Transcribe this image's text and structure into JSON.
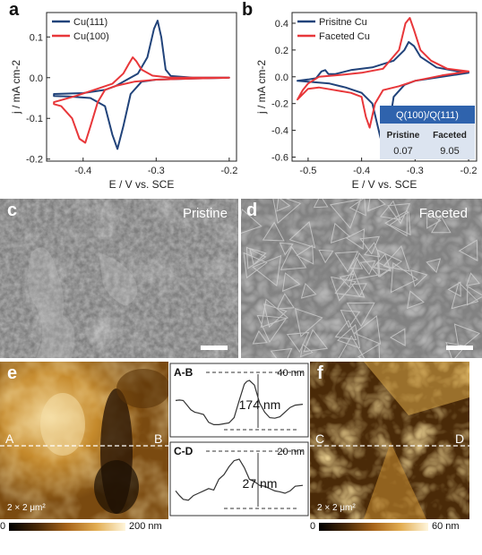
{
  "panels": {
    "a": "a",
    "b": "b",
    "c": "c",
    "d": "d",
    "e": "e",
    "f": "f"
  },
  "colors": {
    "blue": "#21437a",
    "red": "#e8373a",
    "table_header": "#2f63ad",
    "table_body": "#dce4f0"
  },
  "chart_data": [
    {
      "id": "a",
      "type": "line",
      "xlabel": "E / V vs. SCE",
      "ylabel": "j / mA cm-2",
      "xlim": [
        -0.45,
        -0.19
      ],
      "ylim": [
        -0.205,
        0.16
      ],
      "xticks": [
        -0.4,
        -0.3,
        -0.2
      ],
      "xtick_labels": [
        "-0.4",
        "-0.3",
        "-0.2"
      ],
      "yticks": [
        -0.2,
        -0.1,
        0.0,
        0.1
      ],
      "ytick_labels": [
        "-0.2",
        "-0.1",
        "0.0",
        "0.1"
      ],
      "legend_position": "top-left",
      "series": [
        {
          "name": "Cu(111)",
          "color": "#21437a",
          "points": [
            [
              -0.44,
              -0.04
            ],
            [
              -0.4,
              -0.038
            ],
            [
              -0.37,
              -0.03
            ],
            [
              -0.355,
              -0.02
            ],
            [
              -0.34,
              -0.005
            ],
            [
              -0.325,
              0.01
            ],
            [
              -0.312,
              0.05
            ],
            [
              -0.303,
              0.12
            ],
            [
              -0.298,
              0.14
            ],
            [
              -0.293,
              0.1
            ],
            [
              -0.287,
              0.02
            ],
            [
              -0.28,
              0.004
            ],
            [
              -0.25,
              0.0
            ],
            [
              -0.2,
              0.0
            ],
            [
              -0.2,
              0.0
            ],
            [
              -0.25,
              -0.002
            ],
            [
              -0.3,
              -0.005
            ],
            [
              -0.32,
              -0.01
            ],
            [
              -0.335,
              -0.04
            ],
            [
              -0.345,
              -0.12
            ],
            [
              -0.353,
              -0.175
            ],
            [
              -0.36,
              -0.14
            ],
            [
              -0.37,
              -0.07
            ],
            [
              -0.39,
              -0.05
            ],
            [
              -0.42,
              -0.046
            ],
            [
              -0.44,
              -0.045
            ]
          ]
        },
        {
          "name": "Cu(100)",
          "color": "#e8373a",
          "points": [
            [
              -0.44,
              -0.06
            ],
            [
              -0.43,
              -0.055
            ],
            [
              -0.41,
              -0.045
            ],
            [
              -0.385,
              -0.03
            ],
            [
              -0.36,
              -0.015
            ],
            [
              -0.345,
              0.01
            ],
            [
              -0.337,
              0.035
            ],
            [
              -0.332,
              0.05
            ],
            [
              -0.327,
              0.04
            ],
            [
              -0.32,
              0.02
            ],
            [
              -0.305,
              0.005
            ],
            [
              -0.28,
              0.0
            ],
            [
              -0.25,
              0.0
            ],
            [
              -0.2,
              0.0
            ],
            [
              -0.2,
              0.0
            ],
            [
              -0.25,
              -0.002
            ],
            [
              -0.3,
              -0.005
            ],
            [
              -0.33,
              -0.01
            ],
            [
              -0.355,
              -0.02
            ],
            [
              -0.37,
              -0.03
            ],
            [
              -0.38,
              -0.06
            ],
            [
              -0.39,
              -0.12
            ],
            [
              -0.397,
              -0.16
            ],
            [
              -0.405,
              -0.15
            ],
            [
              -0.415,
              -0.1
            ],
            [
              -0.43,
              -0.07
            ],
            [
              -0.44,
              -0.065
            ]
          ]
        }
      ]
    },
    {
      "id": "b",
      "type": "line",
      "xlabel": "E / V vs. SCE",
      "ylabel": "j / mA cm-2",
      "xlim": [
        -0.53,
        -0.185
      ],
      "ylim": [
        -0.63,
        0.48
      ],
      "xticks": [
        -0.5,
        -0.4,
        -0.3,
        -0.2
      ],
      "xtick_labels": [
        "-0.5",
        "-0.4",
        "-0.3",
        "-0.2"
      ],
      "yticks": [
        -0.6,
        -0.4,
        -0.2,
        0.0,
        0.2,
        0.4
      ],
      "ytick_labels": [
        "-0.6",
        "-0.4",
        "-0.2",
        "0.0",
        "0.2",
        "0.4"
      ],
      "legend_position": "top-left",
      "series": [
        {
          "name": "Prisitne Cu",
          "color": "#21437a",
          "points": [
            [
              -0.52,
              -0.03
            ],
            [
              -0.5,
              -0.02
            ],
            [
              -0.485,
              -0.01
            ],
            [
              -0.475,
              0.04
            ],
            [
              -0.468,
              0.05
            ],
            [
              -0.462,
              0.02
            ],
            [
              -0.45,
              0.02
            ],
            [
              -0.42,
              0.05
            ],
            [
              -0.38,
              0.07
            ],
            [
              -0.34,
              0.12
            ],
            [
              -0.32,
              0.2
            ],
            [
              -0.312,
              0.26
            ],
            [
              -0.302,
              0.23
            ],
            [
              -0.29,
              0.15
            ],
            [
              -0.26,
              0.07
            ],
            [
              -0.22,
              0.04
            ],
            [
              -0.2,
              0.03
            ],
            [
              -0.2,
              0.03
            ],
            [
              -0.25,
              0.0
            ],
            [
              -0.3,
              -0.03
            ],
            [
              -0.32,
              -0.06
            ],
            [
              -0.34,
              -0.15
            ],
            [
              -0.35,
              -0.4
            ],
            [
              -0.358,
              -0.56
            ],
            [
              -0.365,
              -0.45
            ],
            [
              -0.38,
              -0.2
            ],
            [
              -0.4,
              -0.12
            ],
            [
              -0.43,
              -0.08
            ],
            [
              -0.46,
              -0.05
            ],
            [
              -0.49,
              -0.04
            ],
            [
              -0.52,
              -0.03
            ]
          ]
        },
        {
          "name": "Faceted Cu",
          "color": "#e8373a",
          "points": [
            [
              -0.52,
              -0.17
            ],
            [
              -0.51,
              -0.1
            ],
            [
              -0.5,
              -0.05
            ],
            [
              -0.48,
              0.0
            ],
            [
              -0.45,
              0.01
            ],
            [
              -0.4,
              0.03
            ],
            [
              -0.36,
              0.06
            ],
            [
              -0.33,
              0.2
            ],
            [
              -0.318,
              0.4
            ],
            [
              -0.31,
              0.44
            ],
            [
              -0.302,
              0.35
            ],
            [
              -0.29,
              0.2
            ],
            [
              -0.27,
              0.12
            ],
            [
              -0.24,
              0.06
            ],
            [
              -0.2,
              0.04
            ],
            [
              -0.2,
              0.04
            ],
            [
              -0.25,
              0.01
            ],
            [
              -0.3,
              -0.03
            ],
            [
              -0.33,
              -0.07
            ],
            [
              -0.36,
              -0.1
            ],
            [
              -0.375,
              -0.2
            ],
            [
              -0.385,
              -0.38
            ],
            [
              -0.392,
              -0.3
            ],
            [
              -0.4,
              -0.15
            ],
            [
              -0.42,
              -0.12
            ],
            [
              -0.45,
              -0.1
            ],
            [
              -0.48,
              -0.08
            ],
            [
              -0.5,
              -0.09
            ],
            [
              -0.52,
              -0.17
            ]
          ]
        }
      ],
      "table": {
        "header": "Q(100)/Q(111)",
        "columns": [
          "Pristine",
          "Faceted"
        ],
        "values": [
          "0.07",
          "9.05"
        ]
      }
    },
    {
      "id": "profile-AB",
      "type": "line",
      "title": "A-B",
      "annotation": "174 nm",
      "scale_label": "40 nm",
      "series": [
        {
          "name": "",
          "color": "#333333",
          "points": [
            [
              0,
              0.55
            ],
            [
              0.03,
              0.56
            ],
            [
              0.06,
              0.55
            ],
            [
              0.09,
              0.45
            ],
            [
              0.12,
              0.35
            ],
            [
              0.15,
              0.3
            ],
            [
              0.18,
              0.28
            ],
            [
              0.22,
              0.25
            ],
            [
              0.26,
              0.08
            ],
            [
              0.3,
              0.03
            ],
            [
              0.34,
              0.03
            ],
            [
              0.38,
              0.05
            ],
            [
              0.42,
              0.07
            ],
            [
              0.46,
              0.18
            ],
            [
              0.5,
              0.55
            ],
            [
              0.54,
              0.9
            ],
            [
              0.56,
              0.96
            ],
            [
              0.58,
              0.98
            ],
            [
              0.62,
              0.88
            ],
            [
              0.66,
              0.5
            ],
            [
              0.7,
              0.3
            ],
            [
              0.74,
              0.18
            ],
            [
              0.78,
              0.17
            ],
            [
              0.82,
              0.2
            ],
            [
              0.86,
              0.3
            ],
            [
              0.9,
              0.4
            ],
            [
              0.94,
              0.45
            ],
            [
              1.0,
              0.47
            ]
          ]
        }
      ]
    },
    {
      "id": "profile-CD",
      "type": "line",
      "title": "C-D",
      "annotation": "27 nm",
      "scale_label": "20 nm",
      "series": [
        {
          "name": "",
          "color": "#333333",
          "points": [
            [
              0,
              0.3
            ],
            [
              0.03,
              0.2
            ],
            [
              0.06,
              0.12
            ],
            [
              0.1,
              0.1
            ],
            [
              0.14,
              0.2
            ],
            [
              0.18,
              0.25
            ],
            [
              0.22,
              0.3
            ],
            [
              0.26,
              0.35
            ],
            [
              0.3,
              0.32
            ],
            [
              0.34,
              0.55
            ],
            [
              0.38,
              0.65
            ],
            [
              0.42,
              0.82
            ],
            [
              0.46,
              0.95
            ],
            [
              0.5,
              0.98
            ],
            [
              0.54,
              0.8
            ],
            [
              0.58,
              0.55
            ],
            [
              0.62,
              0.5
            ],
            [
              0.66,
              0.42
            ],
            [
              0.7,
              0.4
            ],
            [
              0.74,
              0.35
            ],
            [
              0.78,
              0.3
            ],
            [
              0.82,
              0.28
            ],
            [
              0.86,
              0.25
            ],
            [
              0.9,
              0.3
            ],
            [
              0.94,
              0.4
            ],
            [
              1.0,
              0.42
            ]
          ]
        }
      ]
    }
  ],
  "sem": {
    "c_label": "Pristine",
    "d_label": "Faceted"
  },
  "afm": {
    "e": {
      "left": "A",
      "right": "B",
      "size": "2 × 2 μm²",
      "cbar_min": "0",
      "cbar_max": "200 nm"
    },
    "f": {
      "left": "C",
      "right": "D",
      "size": "2 × 2 μm²",
      "cbar_min": "0",
      "cbar_max": "60 nm"
    }
  }
}
